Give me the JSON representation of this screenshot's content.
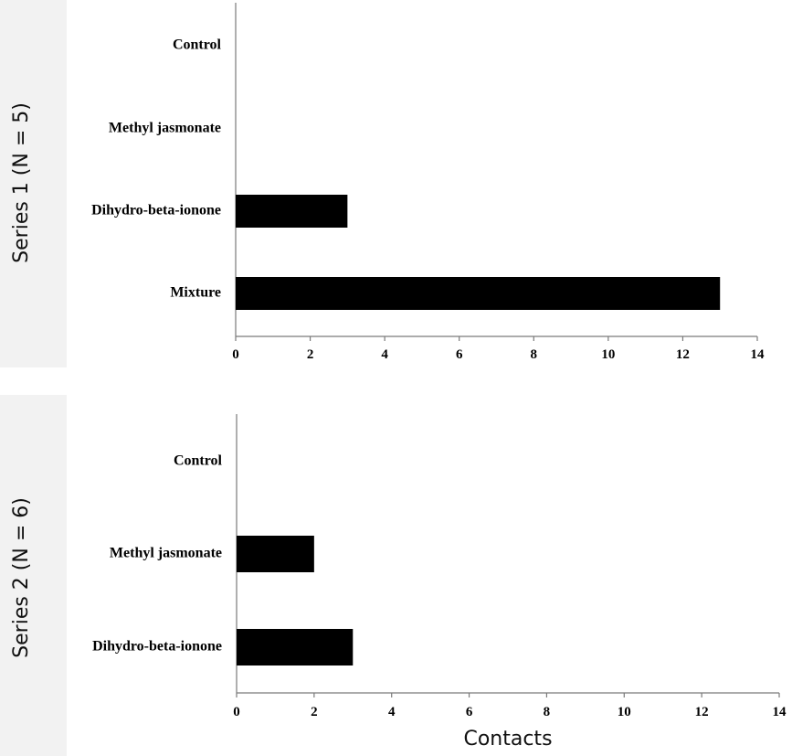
{
  "chart_data": [
    {
      "type": "bar",
      "orientation": "horizontal",
      "panel_label": "Series 1 (N = 5)",
      "categories": [
        "Control",
        "Methyl jasmonate",
        "Dihydro-beta-ionone",
        "Mixture"
      ],
      "values": [
        0,
        0,
        3,
        13
      ],
      "xlim": [
        0,
        14
      ],
      "xticks": [
        "0",
        "2",
        "4",
        "6",
        "8",
        "10",
        "12",
        "14"
      ],
      "bar_color": "#000000",
      "grid": false
    },
    {
      "type": "bar",
      "orientation": "horizontal",
      "panel_label": "Series 2 (N = 6)",
      "categories": [
        "Control",
        "Methyl jasmonate",
        "Dihydro-beta-ionone"
      ],
      "values": [
        0,
        2,
        3
      ],
      "xlim": [
        0,
        14
      ],
      "xticks": [
        "0",
        "2",
        "4",
        "6",
        "8",
        "10",
        "12",
        "14"
      ],
      "xlabel": "Contacts",
      "bar_color": "#000000",
      "grid": false
    }
  ]
}
